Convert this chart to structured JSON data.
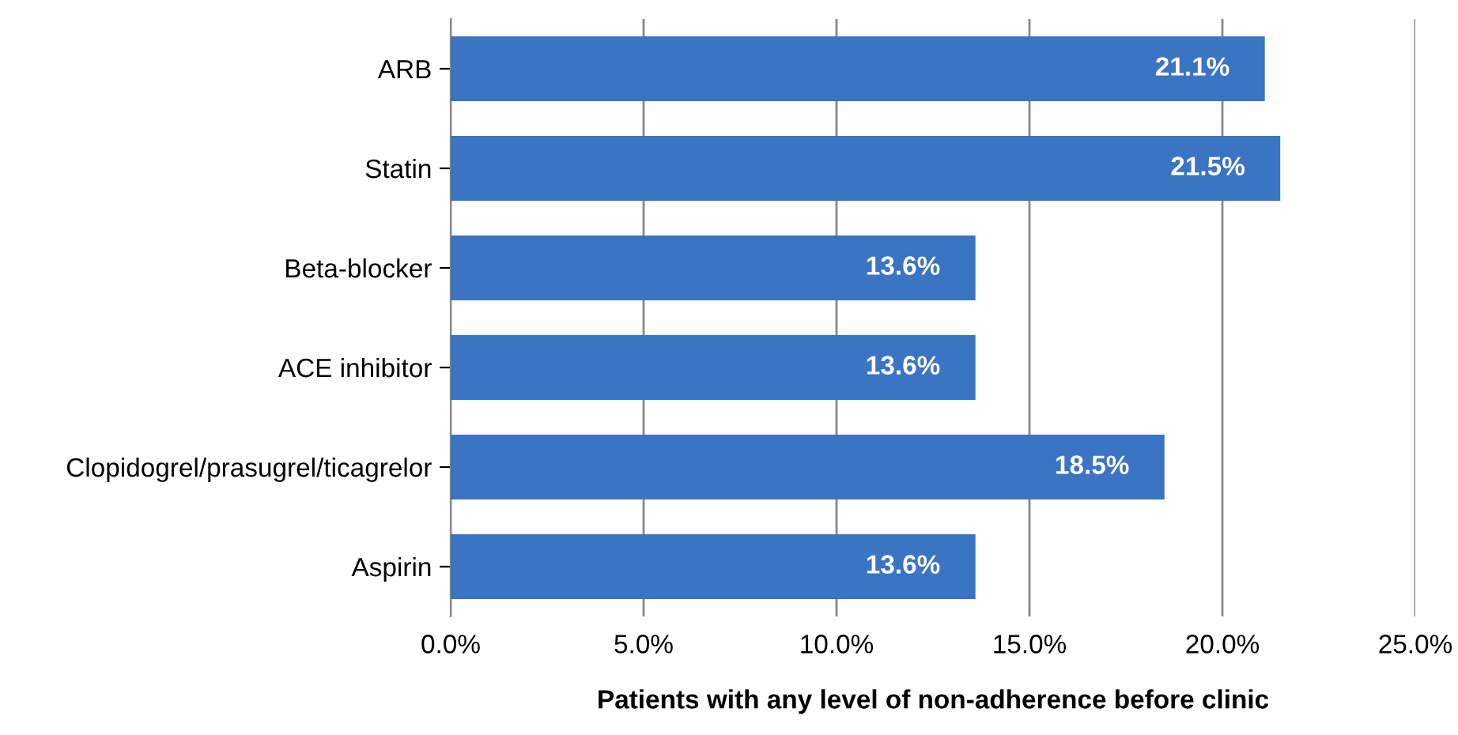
{
  "chart_data": {
    "type": "bar",
    "orientation": "horizontal",
    "xlabel": "Patients with any level of non-adherence before clinic",
    "categories": [
      "ARB",
      "Statin",
      "Beta-blocker",
      "ACE inhibitor",
      "Clopidogrel/prasugrel/ticagrelor",
      "Aspirin"
    ],
    "values": [
      21.1,
      21.5,
      13.6,
      13.6,
      18.5,
      13.6
    ],
    "value_labels": [
      "21.1%",
      "21.5%",
      "13.6%",
      "13.6%",
      "18.5%",
      "13.6%"
    ],
    "color": "#3b74c2",
    "xlim": [
      0,
      25
    ],
    "xticks": [
      {
        "value": 0,
        "label": "0.0%"
      },
      {
        "value": 5,
        "label": "5.0%"
      },
      {
        "value": 10,
        "label": "10.0%"
      },
      {
        "value": 15,
        "label": "15.0%"
      },
      {
        "value": 20,
        "label": "20.0%"
      },
      {
        "value": 25,
        "label": "25.0%"
      }
    ],
    "grid": "x"
  }
}
